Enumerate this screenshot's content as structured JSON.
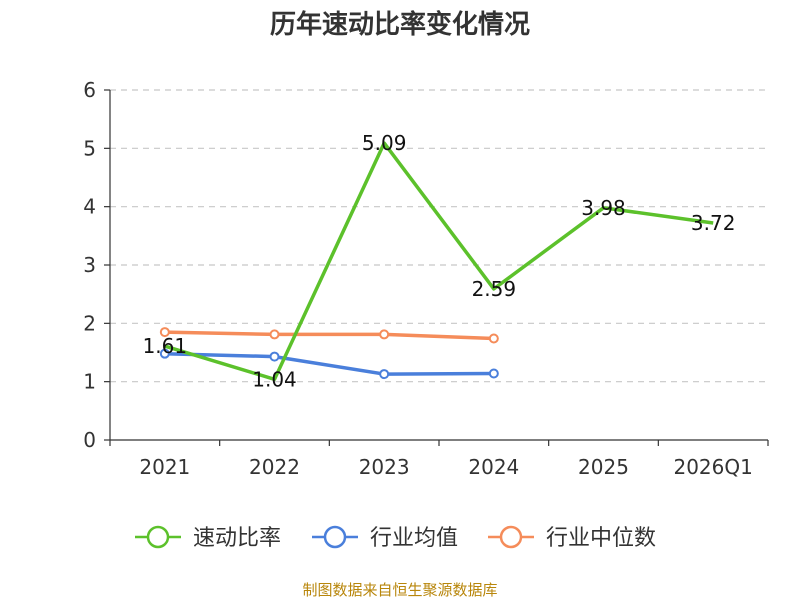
{
  "chart_data": {
    "type": "line",
    "title": "历年速动比率变化情况",
    "categories": [
      "2021",
      "2022",
      "2023",
      "2024",
      "2025",
      "2026Q1"
    ],
    "ylim": [
      0,
      6
    ],
    "yticks": [
      "0",
      "1",
      "2",
      "3",
      "4",
      "5",
      "6"
    ],
    "grid": true,
    "legend_position": "bottom",
    "series": [
      {
        "name": "速动比率",
        "color": "#5cc12b",
        "values": [
          1.61,
          1.04,
          5.09,
          2.59,
          3.98,
          3.72
        ],
        "labels": [
          "1.61",
          "1.04",
          "5.09",
          "2.59",
          "3.98",
          "3.72"
        ],
        "show_markers": false
      },
      {
        "name": "行业均值",
        "color": "#4a7fdb",
        "values": [
          1.48,
          1.43,
          1.13,
          1.14,
          null,
          null
        ],
        "show_markers": true
      },
      {
        "name": "行业中位数",
        "color": "#f58c5a",
        "values": [
          1.85,
          1.81,
          1.81,
          1.74,
          null,
          null
        ],
        "show_markers": true
      }
    ]
  },
  "source_text": "制图数据来自恒生聚源数据库"
}
